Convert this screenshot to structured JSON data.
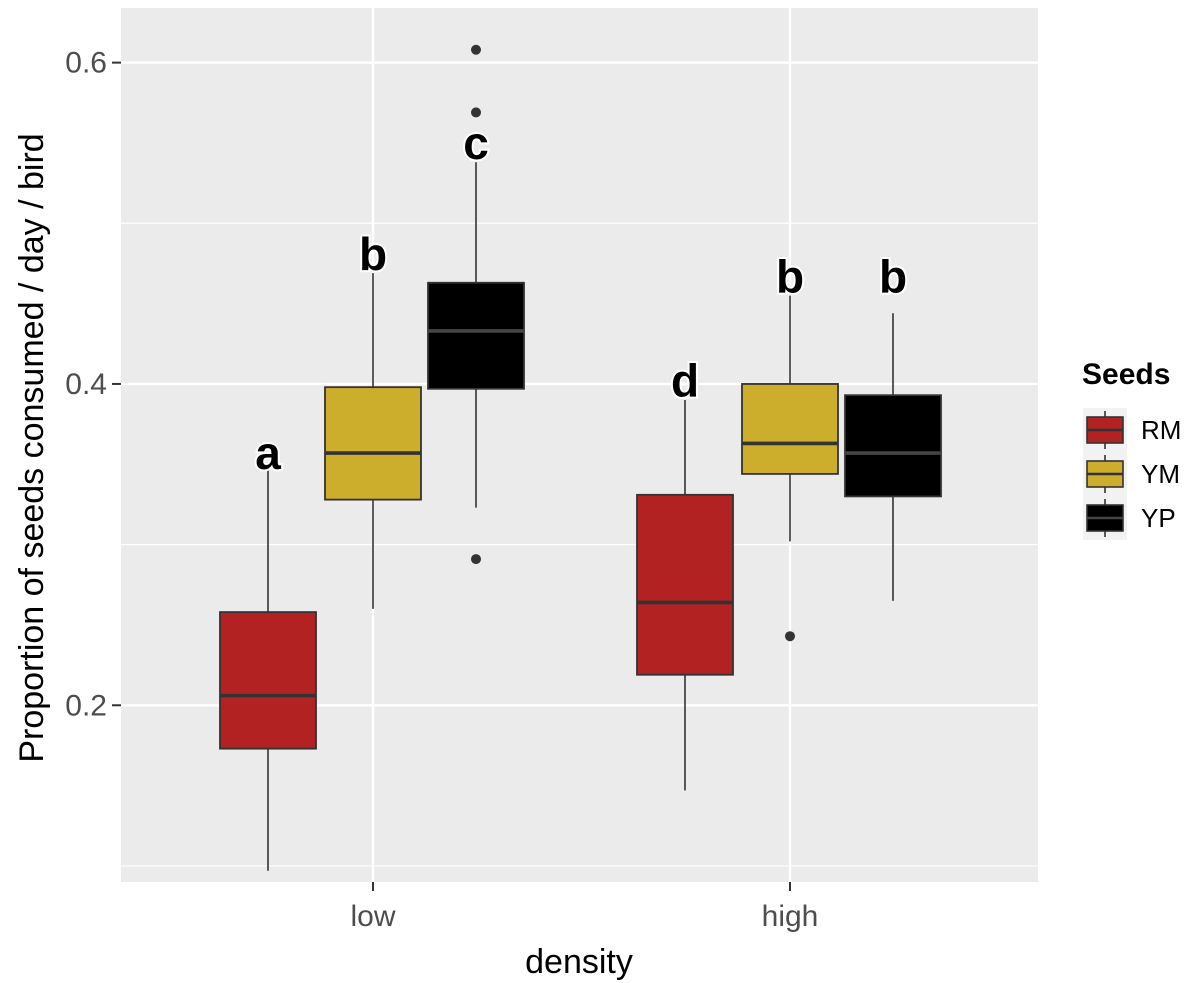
{
  "chart_data": {
    "type": "boxplot",
    "xlabel": "density",
    "ylabel": "Proportion of seeds consumed / day / bird",
    "categories": [
      "low",
      "high"
    ],
    "yticks": [
      0.2,
      0.4,
      0.6
    ],
    "ylim": [
      0.09,
      0.634
    ],
    "legend": {
      "title": "Seeds",
      "position": "right"
    },
    "background": "#ebebeb",
    "grid": true,
    "series": [
      {
        "name": "RM",
        "color": "#b22222",
        "boxes": [
          {
            "category": "low",
            "whisker_low": 0.097,
            "q1": 0.173,
            "median": 0.206,
            "q3": 0.258,
            "whisker_high": 0.347,
            "outliers": []
          },
          {
            "category": "high",
            "whisker_low": 0.147,
            "q1": 0.219,
            "median": 0.264,
            "q3": 0.331,
            "whisker_high": 0.39,
            "outliers": []
          }
        ]
      },
      {
        "name": "YM",
        "color": "#cdad2c",
        "boxes": [
          {
            "category": "low",
            "whisker_low": 0.26,
            "q1": 0.328,
            "median": 0.357,
            "q3": 0.398,
            "whisker_high": 0.469,
            "outliers": []
          },
          {
            "category": "high",
            "whisker_low": 0.302,
            "q1": 0.344,
            "median": 0.363,
            "q3": 0.4,
            "whisker_high": 0.455,
            "outliers": [
              0.243
            ]
          }
        ]
      },
      {
        "name": "YP",
        "color": "#000000",
        "boxes": [
          {
            "category": "low",
            "whisker_low": 0.323,
            "q1": 0.397,
            "median": 0.433,
            "q3": 0.463,
            "whisker_high": 0.538,
            "outliers": [
              0.291,
              0.569,
              0.608
            ]
          },
          {
            "category": "high",
            "whisker_low": 0.265,
            "q1": 0.33,
            "median": 0.357,
            "q3": 0.393,
            "whisker_high": 0.444,
            "outliers": []
          }
        ]
      }
    ],
    "annotations": [
      {
        "text": "a",
        "category": "low",
        "series": "RM",
        "y": 0.357
      },
      {
        "text": "b",
        "category": "low",
        "series": "YM",
        "y": 0.481
      },
      {
        "text": "c",
        "category": "low",
        "series": "YP",
        "y": 0.55
      },
      {
        "text": "d",
        "category": "high",
        "series": "RM",
        "y": 0.402
      },
      {
        "text": "b",
        "category": "high",
        "series": "YM",
        "y": 0.467
      },
      {
        "text": "b",
        "category": "high",
        "series": "YP",
        "y": 0.467
      }
    ]
  }
}
